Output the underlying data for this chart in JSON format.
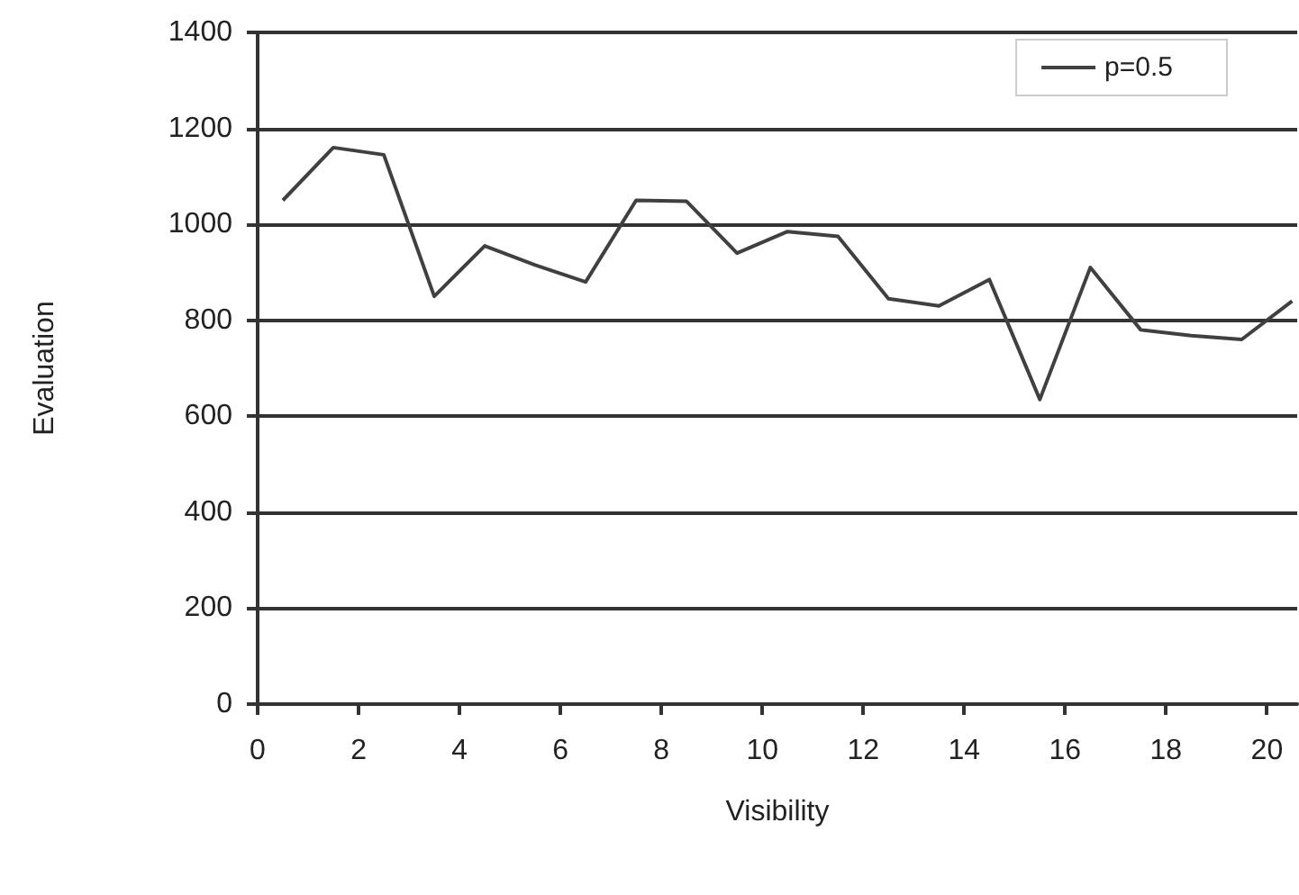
{
  "chart_data": {
    "type": "line",
    "xlabel": "Visibility",
    "ylabel": "Evaluation",
    "x": [
      0.5,
      1.5,
      2.5,
      3.5,
      4.5,
      5.5,
      6.5,
      7.5,
      8.5,
      9.5,
      10.5,
      11.5,
      12.5,
      13.5,
      14.5,
      15.5,
      16.5,
      17.5,
      18.5,
      19.5,
      20.5
    ],
    "series": [
      {
        "name": "p=0.5",
        "color": "#404040",
        "values": [
          1050,
          1160,
          1145,
          850,
          955,
          915,
          880,
          1050,
          1048,
          940,
          985,
          975,
          845,
          830,
          885,
          635,
          910,
          780,
          768,
          760,
          840
        ]
      }
    ],
    "xlim": [
      0,
      20.6
    ],
    "xticks": [
      0,
      2,
      4,
      6,
      8,
      10,
      12,
      14,
      16,
      18,
      20
    ],
    "ylim": [
      0,
      1400
    ],
    "yticks": [
      0,
      200,
      400,
      600,
      800,
      1000,
      1200,
      1400
    ],
    "grid": "y",
    "legend": "top right",
    "marker": "none",
    "line_style": "solid"
  }
}
